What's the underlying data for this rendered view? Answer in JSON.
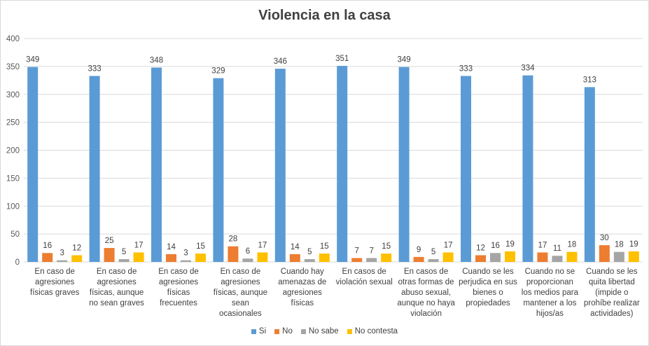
{
  "chart_data": {
    "type": "bar",
    "title": "Violencia en la casa",
    "xlabel": "",
    "ylabel": "",
    "ylim": [
      0,
      400
    ],
    "yticks": [
      0,
      50,
      100,
      150,
      200,
      250,
      300,
      350,
      400
    ],
    "grid": true,
    "legend_position": "bottom",
    "categories": [
      "En caso de agresiones físicas graves",
      "En caso de agresiones físicas, aunque no sean graves",
      "En caso de agresiones físicas frecuentes",
      "En caso de agresiones físicas, aunque sean ocasionales",
      "Cuando hay amenazas de agresiones físicas",
      "En casos de violación sexual",
      "En casos de otras formas de abuso sexual, aunque no haya violación",
      "Cuando se les perjudica en sus bienes o propiedades",
      "Cuando no se proporcionan los medios para mantener a los hijos/as",
      "Cuando se les quita libertad (impide o prohíbe realizar actividades)"
    ],
    "series": [
      {
        "name": "Si",
        "color": "#5b9bd5",
        "values": [
          349,
          333,
          348,
          329,
          346,
          351,
          349,
          333,
          334,
          313
        ]
      },
      {
        "name": "No",
        "color": "#ed7d31",
        "values": [
          16,
          25,
          14,
          28,
          14,
          7,
          9,
          12,
          17,
          30
        ]
      },
      {
        "name": "No sabe",
        "color": "#a5a5a5",
        "values": [
          3,
          5,
          3,
          6,
          5,
          7,
          5,
          16,
          11,
          18
        ]
      },
      {
        "name": "No contesta",
        "color": "#ffc000",
        "values": [
          12,
          17,
          15,
          17,
          15,
          15,
          17,
          19,
          18,
          19
        ]
      }
    ]
  }
}
